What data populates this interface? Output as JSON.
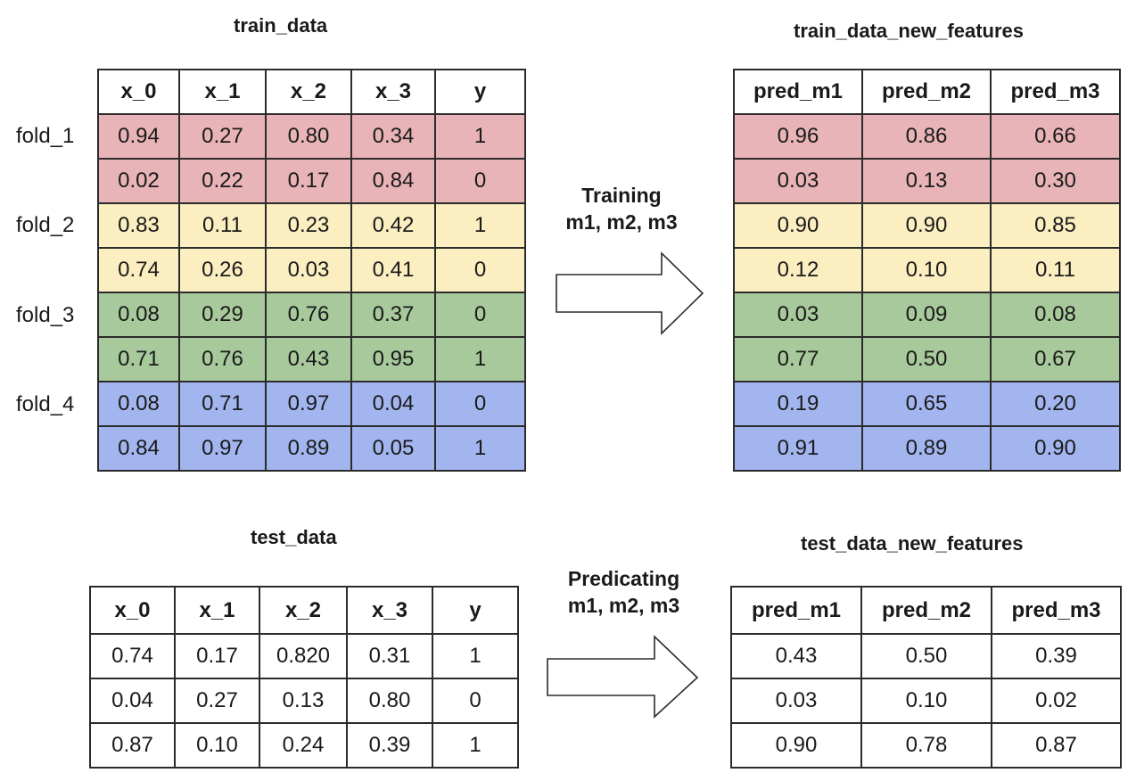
{
  "train": {
    "title": "train_data",
    "headers": [
      "x_0",
      "x_1",
      "x_2",
      "x_3",
      "y"
    ],
    "fold_labels": [
      "fold_1",
      "fold_2",
      "fold_3",
      "fold_4"
    ],
    "rows": [
      [
        "0.94",
        "0.27",
        "0.80",
        "0.34",
        "1"
      ],
      [
        "0.02",
        "0.22",
        "0.17",
        "0.84",
        "0"
      ],
      [
        "0.83",
        "0.11",
        "0.23",
        "0.42",
        "1"
      ],
      [
        "0.74",
        "0.26",
        "0.03",
        "0.41",
        "0"
      ],
      [
        "0.08",
        "0.29",
        "0.76",
        "0.37",
        "0"
      ],
      [
        "0.71",
        "0.76",
        "0.43",
        "0.95",
        "1"
      ],
      [
        "0.08",
        "0.71",
        "0.97",
        "0.04",
        "0"
      ],
      [
        "0.84",
        "0.97",
        "0.89",
        "0.05",
        "1"
      ]
    ],
    "row_colors": [
      "red",
      "red",
      "yellow",
      "yellow",
      "green",
      "green",
      "blue",
      "blue"
    ]
  },
  "train_new": {
    "title": "train_data_new_features",
    "headers": [
      "pred_m1",
      "pred_m2",
      "pred_m3"
    ],
    "rows": [
      [
        "0.96",
        "0.86",
        "0.66"
      ],
      [
        "0.03",
        "0.13",
        "0.30"
      ],
      [
        "0.90",
        "0.90",
        "0.85"
      ],
      [
        "0.12",
        "0.10",
        "0.11"
      ],
      [
        "0.03",
        "0.09",
        "0.08"
      ],
      [
        "0.77",
        "0.50",
        "0.67"
      ],
      [
        "0.19",
        "0.65",
        "0.20"
      ],
      [
        "0.91",
        "0.89",
        "0.90"
      ]
    ],
    "row_colors": [
      "red",
      "red",
      "yellow",
      "yellow",
      "green",
      "green",
      "blue",
      "blue"
    ]
  },
  "test": {
    "title": "test_data",
    "headers": [
      "x_0",
      "x_1",
      "x_2",
      "x_3",
      "y"
    ],
    "rows": [
      [
        "0.74",
        "0.17",
        "0.820",
        "0.31",
        "1"
      ],
      [
        "0.04",
        "0.27",
        "0.13",
        "0.80",
        "0"
      ],
      [
        "0.87",
        "0.10",
        "0.24",
        "0.39",
        "1"
      ]
    ]
  },
  "test_new": {
    "title": "test_data_new_features",
    "headers": [
      "pred_m1",
      "pred_m2",
      "pred_m3"
    ],
    "rows": [
      [
        "0.43",
        "0.50",
        "0.39"
      ],
      [
        "0.03",
        "0.10",
        "0.02"
      ],
      [
        "0.90",
        "0.78",
        "0.87"
      ]
    ]
  },
  "arrows": {
    "training": {
      "line1": "Training",
      "line2": "m1, m2, m3"
    },
    "predicting": {
      "line1": "Predicating",
      "line2": "m1, m2, m3"
    }
  },
  "colors": {
    "red": "#e8b4b8",
    "yellow": "#fbeec0",
    "green": "#a7c99b",
    "blue": "#a3b5ef",
    "border": "#2b2b2b"
  }
}
